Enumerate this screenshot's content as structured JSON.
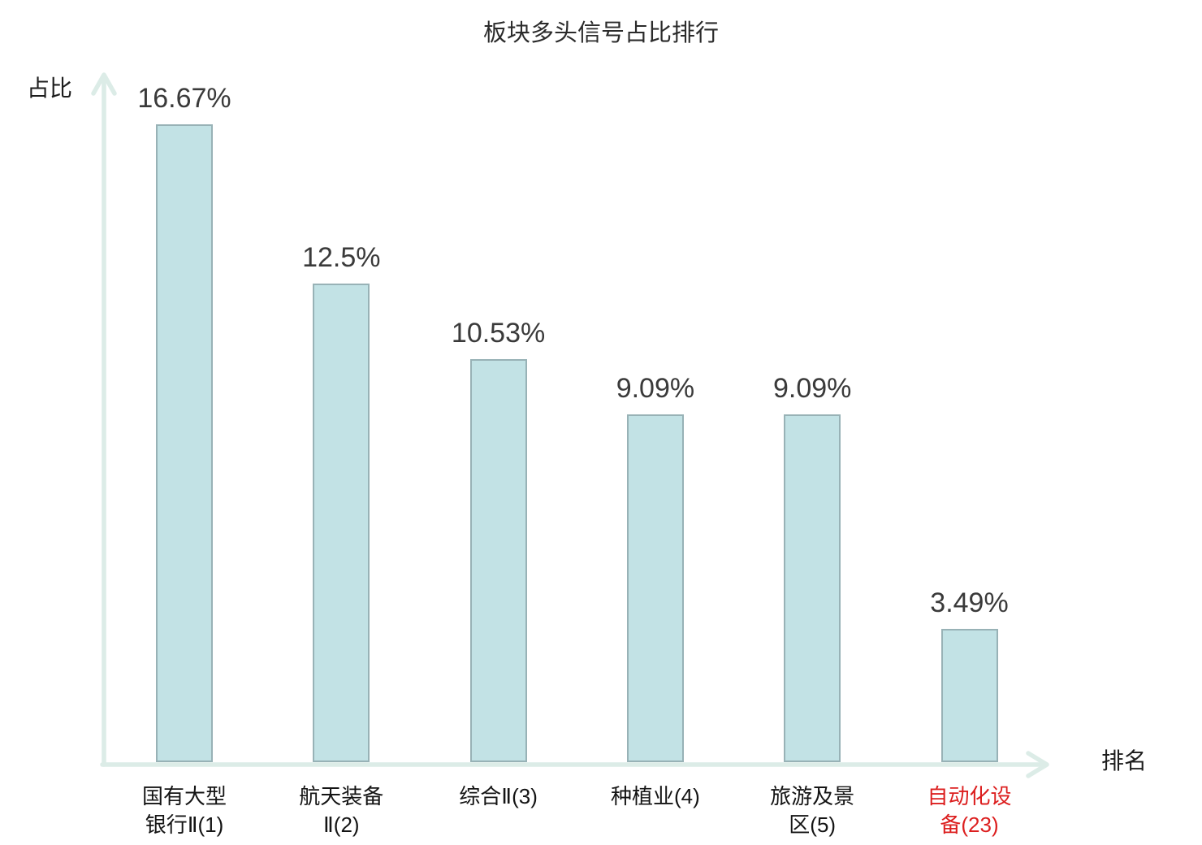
{
  "title": "板块多头信号占比排行",
  "axes": {
    "y_label": "占比",
    "x_label": "排名"
  },
  "colors": {
    "bar_fill": "#c2e2e5",
    "bar_border": "#98b2b6",
    "axis": "#dcece7",
    "value_text": "#3a3a3a",
    "category_text": "#141414",
    "highlight_text": "#dc1f1f"
  },
  "chart_data": {
    "type": "bar",
    "title": "板块多头信号占比排行",
    "xlabel": "排名",
    "ylabel": "占比",
    "categories": [
      "国有大型银行Ⅱ(1)",
      "航天装备Ⅱ(2)",
      "综合Ⅱ(3)",
      "种植业(4)",
      "旅游及景区(5)",
      "自动化设备(23)"
    ],
    "category_lines": [
      [
        "国有大型",
        "银行Ⅱ(1)"
      ],
      [
        "航天装备",
        "Ⅱ(2)"
      ],
      [
        "综合Ⅱ(3)"
      ],
      [
        "种植业(4)"
      ],
      [
        "旅游及景",
        "区(5)"
      ],
      [
        "自动化设",
        "备(23)"
      ]
    ],
    "values": [
      16.67,
      12.5,
      10.53,
      9.09,
      9.09,
      3.49
    ],
    "value_labels": [
      "16.67%",
      "12.5%",
      "10.53%",
      "9.09%",
      "9.09%",
      "3.49%"
    ],
    "highlight_index": 5,
    "ylim": [
      0,
      17.9
    ],
    "grid": false,
    "legend": "none"
  }
}
